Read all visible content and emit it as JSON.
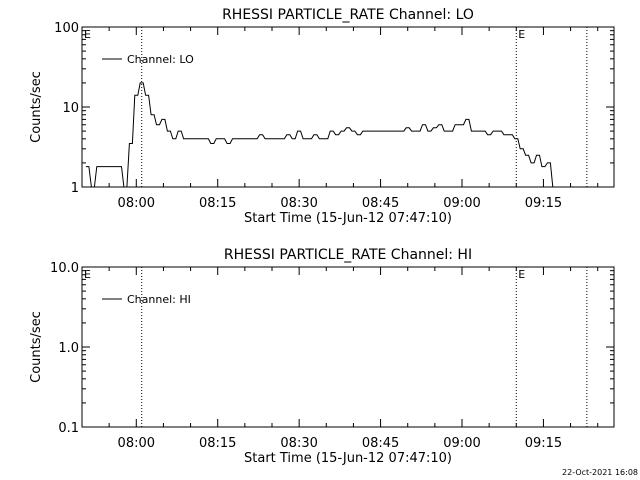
{
  "footer_timestamp": "22-Oct-2021 16:08",
  "chart_data": [
    {
      "type": "line",
      "title": "RHESSI PARTICLE_RATE Channel: LO",
      "xlabel": "Start Time (15-Jun-12 07:47:10)",
      "ylabel": "Counts/sec",
      "yscale": "log",
      "ylim": [
        1,
        100
      ],
      "yticks": [
        1,
        10,
        100
      ],
      "ytick_labels": [
        "1",
        "10",
        "100"
      ],
      "xlim": [
        "07:50",
        "09:28"
      ],
      "xticks": [
        "08:00",
        "08:15",
        "08:30",
        "08:45",
        "09:00",
        "09:15"
      ],
      "vlines": [
        "08:01",
        "09:10",
        "09:23"
      ],
      "markers": [
        {
          "label": "E",
          "x": "07:50"
        },
        {
          "label": "E",
          "x": "09:10"
        }
      ],
      "legend": {
        "entries": [
          "Channel: LO"
        ],
        "placement": "top-left"
      },
      "series": [
        {
          "name": "Channel: LO",
          "x": [
            "07:51",
            "07:52",
            "07:53",
            "07:54",
            "07:55",
            "07:56",
            "07:57",
            "07:58",
            "07:59",
            "08:00",
            "08:01",
            "08:02",
            "08:03",
            "08:04",
            "08:05",
            "08:06",
            "08:07",
            "08:08",
            "08:09",
            "08:10",
            "08:11",
            "08:12",
            "08:13",
            "08:14",
            "08:15",
            "08:16",
            "08:17",
            "08:18",
            "08:19",
            "08:20",
            "08:21",
            "08:22",
            "08:23",
            "08:24",
            "08:25",
            "08:26",
            "08:27",
            "08:28",
            "08:29",
            "08:30",
            "08:31",
            "08:32",
            "08:33",
            "08:34",
            "08:35",
            "08:36",
            "08:37",
            "08:38",
            "08:39",
            "08:40",
            "08:41",
            "08:42",
            "08:43",
            "08:44",
            "08:45",
            "08:46",
            "08:47",
            "08:48",
            "08:49",
            "08:50",
            "08:51",
            "08:52",
            "08:53",
            "08:54",
            "08:55",
            "08:56",
            "08:57",
            "08:58",
            "08:59",
            "09:00",
            "09:01",
            "09:02",
            "09:03",
            "09:04",
            "09:05",
            "09:06",
            "09:07",
            "09:08",
            "09:09",
            "09:10",
            "09:11",
            "09:12",
            "09:13",
            "09:14",
            "09:15",
            "09:16",
            "09:17"
          ],
          "y": [
            1.8,
            1.0,
            1.8,
            1.8,
            1.8,
            1.8,
            1.8,
            1.0,
            3.5,
            14,
            20,
            14,
            8,
            6,
            7,
            5,
            4,
            5,
            4,
            4,
            4,
            4,
            4,
            3.5,
            4,
            4,
            3.5,
            4,
            4,
            4,
            4,
            4,
            4.5,
            4,
            4,
            4,
            4,
            4.5,
            4,
            5,
            4,
            4,
            4.5,
            4,
            4,
            5,
            4.5,
            5,
            5.5,
            5,
            4.5,
            5,
            5,
            5,
            5,
            5,
            5,
            5,
            5,
            5.5,
            5,
            5,
            6,
            5,
            5.5,
            6,
            5,
            5,
            6,
            6,
            7,
            5,
            5,
            5,
            4.5,
            5,
            5,
            4.5,
            4.5,
            4,
            3,
            2.5,
            2,
            2.5,
            1.8,
            2,
            1.0
          ]
        }
      ]
    },
    {
      "type": "line",
      "title": "RHESSI PARTICLE_RATE Channel: HI",
      "xlabel": "Start Time (15-Jun-12 07:47:10)",
      "ylabel": "Counts/sec",
      "yscale": "log",
      "ylim": [
        0.1,
        10
      ],
      "yticks": [
        0.1,
        1.0,
        10.0
      ],
      "ytick_labels": [
        "0.1",
        "1.0",
        "10.0"
      ],
      "xlim": [
        "07:50",
        "09:28"
      ],
      "xticks": [
        "08:00",
        "08:15",
        "08:30",
        "08:45",
        "09:00",
        "09:15"
      ],
      "vlines": [
        "08:01",
        "09:10",
        "09:23"
      ],
      "markers": [
        {
          "label": "E",
          "x": "07:50"
        },
        {
          "label": "E",
          "x": "09:10"
        }
      ],
      "legend": {
        "entries": [
          "Channel: HI"
        ],
        "placement": "top-left"
      },
      "series": [
        {
          "name": "Channel: HI",
          "x": [],
          "y": []
        }
      ]
    }
  ]
}
